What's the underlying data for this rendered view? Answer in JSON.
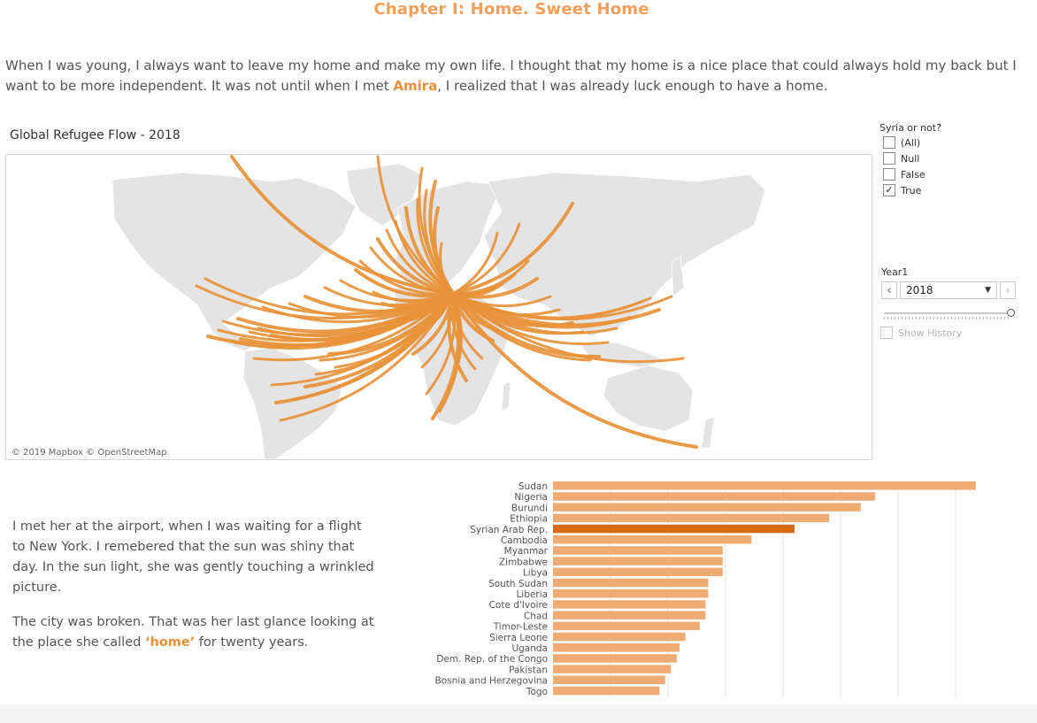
{
  "header": {
    "chapter_title": "Chapter I: Home. Sweet Home",
    "intro_before": "When I was young, I always want to leave my home and make my own life. I thought that my home is a nice place that could always hold my back but I want to be more independent. It was not until when I met ",
    "intro_name": "Amira",
    "intro_after": ", I realized that I was already luck enough to have a home."
  },
  "map": {
    "title": "Global Refugee Flow - 2018",
    "attribution": "© 2019 Mapbox  © OpenStreetMap",
    "flow_color": "#e8923a",
    "land_color": "#e4e4e4"
  },
  "filter": {
    "title": "Syria or not?",
    "options": [
      {
        "label": "(All)",
        "checked": false
      },
      {
        "label": "Null",
        "checked": false
      },
      {
        "label": "False",
        "checked": false
      },
      {
        "label": "True",
        "checked": true
      }
    ]
  },
  "year_control": {
    "label": "Year1",
    "value": "2018",
    "show_history_label": "Show History"
  },
  "story": {
    "p1": "I met her at the airport, when I was waiting for a flight to New York. I remebered that the sun was shiny that day. In the sun light, she was gently touching a wrinkled picture.",
    "p2_before": "The city was broken. That was her last glance looking at the place she called ",
    "p2_highlight": "‘home’",
    "p2_after": " for twenty years."
  },
  "chart_data": {
    "type": "bar",
    "orientation": "horizontal",
    "categories": [
      "Sudan",
      "Nigeria",
      "Burundi",
      "Ethiopia",
      "Syrian Arab Rep.",
      "Cambodia",
      "Myanmar",
      "Zimbabwe",
      "Libya",
      "South Sudan",
      "Liberia",
      "Cote d'Ivoire",
      "Chad",
      "Timor-Leste",
      "Sierra Leone",
      "Uganda",
      "Dem. Rep. of the Congo",
      "Pakistan",
      "Bosnia and Herzegovina",
      "Togo"
    ],
    "values": [
      147,
      112,
      107,
      96,
      84,
      69,
      59,
      59,
      59,
      54,
      54,
      53,
      53,
      51,
      46,
      44,
      43,
      41,
      39,
      37
    ],
    "highlight": "Syrian Arab Rep.",
    "colors": {
      "bar": "#f0ab72",
      "highlight": "#d96a10",
      "grid": "#e6e6e6"
    },
    "xlim": [
      0,
      160
    ],
    "gridlines": [
      20,
      40,
      60,
      80,
      100,
      120,
      140
    ]
  }
}
